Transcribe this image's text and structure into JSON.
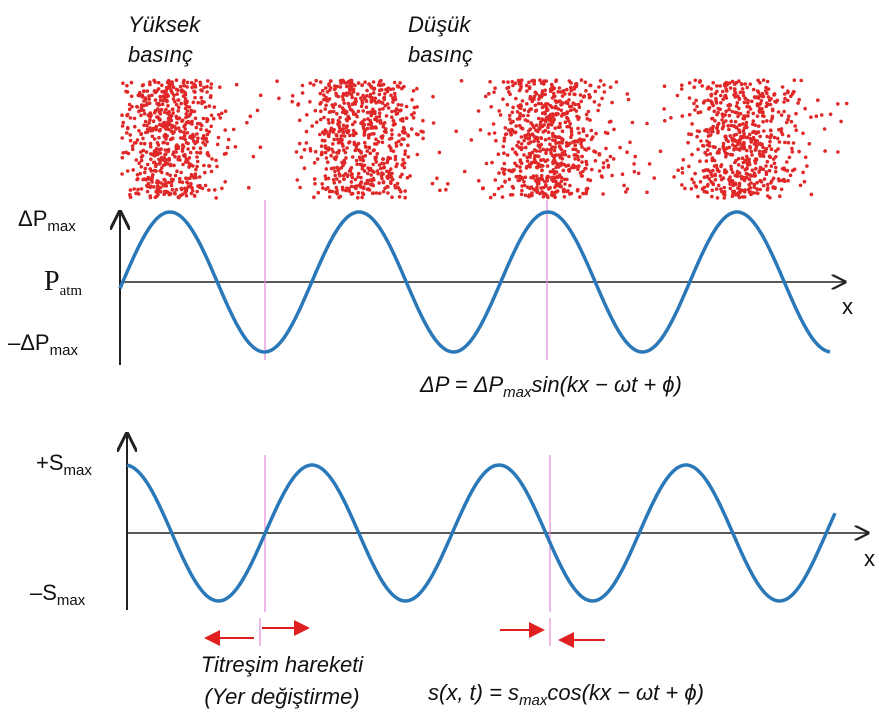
{
  "labels": {
    "high_pressure": [
      "Yüksek",
      "basınç"
    ],
    "low_pressure": [
      "Düşük",
      "basınç"
    ],
    "dp_max": {
      "main": "ΔP",
      "sub": "max"
    },
    "p_atm": {
      "main": "P",
      "sub": "atm"
    },
    "dp_min": {
      "main": "–ΔP",
      "sub": "max"
    },
    "s_max": {
      "main": "+S",
      "sub": "max"
    },
    "s_min": {
      "main": "–S",
      "sub": "max"
    },
    "x_axis_1": "x",
    "x_axis_2": "x",
    "motion": [
      "Titreşim hareketi",
      "(Yer değiştirme)"
    ],
    "formula_pressure": [
      "ΔP = ΔP",
      "max",
      "sin(kx − ωt + ϕ)"
    ],
    "formula_displacement": [
      "s(x, t) = s",
      "max",
      "cos(kx − ωt + ϕ)"
    ]
  }
}
